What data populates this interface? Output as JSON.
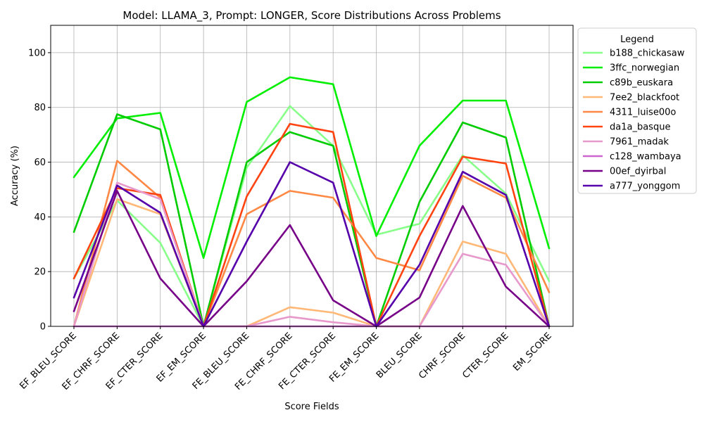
{
  "chart_data": {
    "type": "line",
    "title": "Model: LLAMA_3, Prompt: LONGER, Score Distributions Across Problems",
    "xlabel": "Score Fields",
    "ylabel": "Accuracy (%)",
    "ylim": [
      0,
      110
    ],
    "yticks": [
      0,
      20,
      40,
      60,
      80,
      100
    ],
    "grid": true,
    "legend_title": "Legend",
    "legend_position": "outside-right",
    "categories": [
      "EF_BLEU_SCORE",
      "EF_CHRF_SCORE",
      "EF_CTER_SCORE",
      "EF_EM_SCORE",
      "FE_BLEU_SCORE",
      "FE_CHRF_SCORE",
      "FE_CTER_SCORE",
      "FE_EM_SCORE",
      "BLEU_SCORE",
      "CHRF_SCORE",
      "CTER_SCORE",
      "EM_SCORE"
    ],
    "series": [
      {
        "name": "b188_chickasaw",
        "color": "#88ff88",
        "values": [
          17.5,
          46,
          30.5,
          0,
          58,
          80.5,
          66,
          33.5,
          37.5,
          62.5,
          48.5,
          16.5
        ]
      },
      {
        "name": "3ffc_norwegian",
        "color": "#00ee00",
        "values": [
          54.5,
          76,
          78,
          25,
          82,
          91,
          88.5,
          33,
          66,
          82.5,
          82.5,
          28.5
        ]
      },
      {
        "name": "c89b_euskara",
        "color": "#00cc00",
        "values": [
          34.5,
          77.5,
          72,
          0,
          60,
          71,
          66,
          0,
          45.5,
          74.5,
          69,
          0
        ]
      },
      {
        "name": "7ee2_blackfoot",
        "color": "#ffb877",
        "values": [
          0,
          46.5,
          41,
          0,
          0,
          7,
          5,
          0,
          0,
          31,
          26.5,
          0
        ]
      },
      {
        "name": "4311_luise00o",
        "color": "#ff8844",
        "values": [
          0,
          60.5,
          47,
          0,
          41,
          49.5,
          47,
          25,
          20.5,
          55,
          47,
          12.5
        ]
      },
      {
        "name": "da1a_basque",
        "color": "#ff4411",
        "values": [
          17.5,
          50.5,
          48,
          0,
          47.5,
          74,
          71,
          0,
          33,
          62,
          59.5,
          0
        ]
      },
      {
        "name": "7961_madak",
        "color": "#e899cc",
        "values": [
          0,
          52.5,
          46.5,
          0,
          0,
          3.5,
          1.5,
          0,
          0,
          26.5,
          22.5,
          0
        ]
      },
      {
        "name": "c128_wambaya",
        "color": "#cc66cc",
        "values": [
          0,
          0,
          0,
          0,
          0,
          0,
          0,
          0,
          0,
          0,
          0,
          0
        ]
      },
      {
        "name": "00ef_dyirbal",
        "color": "#770088",
        "values": [
          5.5,
          49.5,
          17.5,
          0,
          16.5,
          37,
          9.5,
          0,
          10.5,
          44,
          14.5,
          0
        ]
      },
      {
        "name": "a777_yonggom",
        "color": "#5500aa",
        "values": [
          10.5,
          51.5,
          41.5,
          0,
          31,
          60,
          52.5,
          0,
          22.5,
          56.5,
          48,
          0
        ]
      }
    ]
  }
}
